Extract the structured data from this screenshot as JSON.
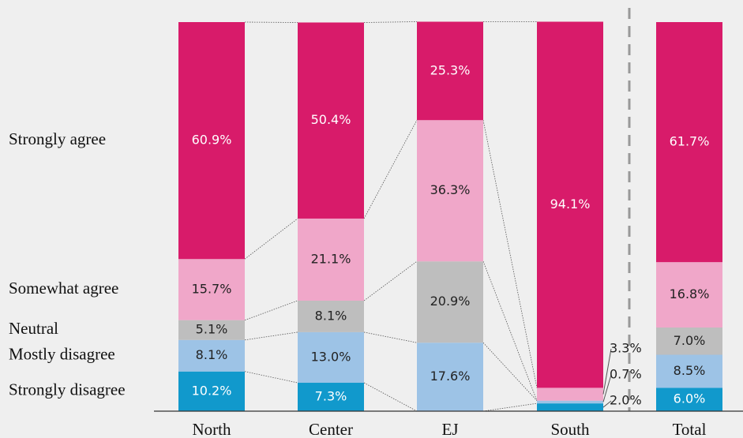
{
  "chart_data": {
    "type": "stacked_bar",
    "categories": [
      "North",
      "Center",
      "EJ",
      "South",
      "Total"
    ],
    "ylim": [
      0,
      100
    ],
    "series": [
      {
        "name": "Strongly disagree",
        "color": "#1199cc",
        "values": [
          10.2,
          7.3,
          0,
          2.0,
          6.0
        ],
        "value_labels": [
          "10.2%",
          "7.3%",
          null,
          "2.0%",
          "6.0%"
        ]
      },
      {
        "name": "Mostly disagree",
        "color": "#9dc3e6",
        "values": [
          8.1,
          13.0,
          17.6,
          0.7,
          8.5
        ],
        "value_labels": [
          "8.1%",
          "13.0%",
          "17.6%",
          "0.7%",
          "8.5%"
        ]
      },
      {
        "name": "Neutral",
        "color": "#bebebe",
        "values": [
          5.1,
          8.1,
          20.9,
          0,
          7.0
        ],
        "value_labels": [
          "5.1%",
          "8.1%",
          "20.9%",
          null,
          "7.0%"
        ]
      },
      {
        "name": "Somewhat agree",
        "color": "#f0a7c9",
        "values": [
          15.7,
          21.1,
          36.3,
          3.3,
          16.8
        ],
        "value_labels": [
          "15.7%",
          "21.1%",
          "36.3%",
          "3.3%",
          "16.8%"
        ]
      },
      {
        "name": "Strongly agree",
        "color": "#d81b6a",
        "values": [
          60.9,
          50.4,
          25.3,
          94.1,
          61.7
        ],
        "value_labels": [
          "60.9%",
          "50.4%",
          "25.3%",
          "94.1%",
          "61.7%"
        ]
      }
    ]
  }
}
